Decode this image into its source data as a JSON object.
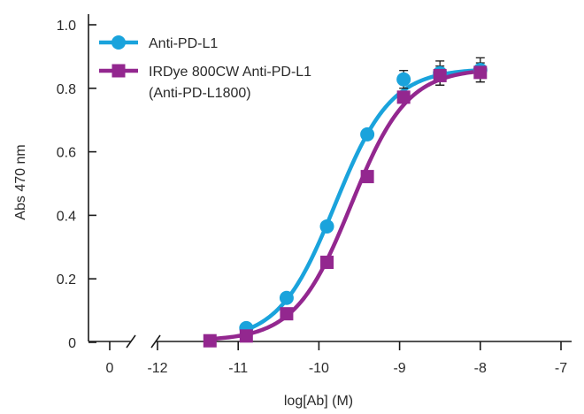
{
  "chart_data": {
    "type": "scatter",
    "xlabel": "log[Ab] (M)",
    "ylabel": "Abs 470 nm",
    "x_ticks": [
      "0",
      "-12",
      "-11",
      "-10",
      "-9",
      "-8",
      "-7"
    ],
    "y_ticks": [
      "0",
      "0.2",
      "0.4",
      "0.6",
      "0.8",
      "1.0"
    ],
    "xlim": [
      -12,
      -7
    ],
    "ylim": [
      0,
      1.0
    ],
    "axis_break": true,
    "series": [
      {
        "name": "Anti-PD-L1",
        "color": "#1aa3dc",
        "marker": "circle",
        "fit": {
          "bottom": 0.005,
          "top": 0.862,
          "log_ec50": -9.8,
          "hill": 1.25
        },
        "x": [
          -10.9,
          -10.4,
          -9.9,
          -9.4,
          -8.95,
          -8.5,
          -8.0
        ],
        "y": [
          0.045,
          0.14,
          0.365,
          0.655,
          0.828,
          0.848,
          0.858
        ],
        "err": [
          0,
          0,
          0,
          0,
          0.028,
          0.038,
          0.038
        ]
      },
      {
        "name": "IRDye 800CW Anti-PD-L1",
        "name_line2": "(Anti-PD-L1800)",
        "color": "#93278f",
        "marker": "square",
        "fit": {
          "bottom": 0.005,
          "top": 0.862,
          "log_ec50": -9.6,
          "hill": 1.25
        },
        "x": [
          -11.35,
          -10.9,
          -10.4,
          -9.9,
          -9.4,
          -8.95,
          -8.5,
          -8.0
        ],
        "y": [
          0.005,
          0.02,
          0.09,
          0.252,
          0.522,
          0.772,
          0.84,
          0.85
        ],
        "err": [
          0,
          0,
          0,
          0,
          0,
          0,
          0.03,
          0.03
        ]
      }
    ],
    "legend": "top-left"
  }
}
